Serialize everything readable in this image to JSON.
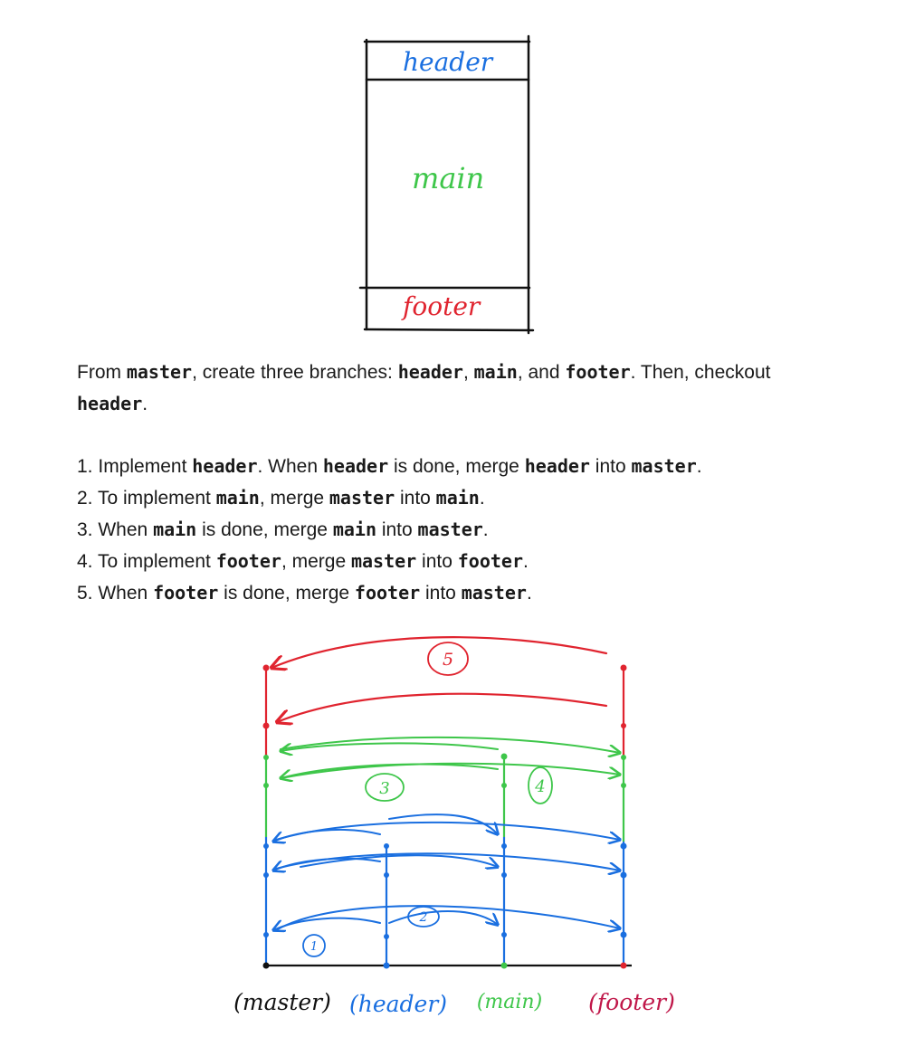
{
  "sketch": {
    "header_label": "header",
    "main_label": "main",
    "footer_label": "footer",
    "colors": {
      "header": "#1a6fe0",
      "main": "#3ec64a",
      "footer": "#e0242f",
      "ink": "#111111"
    }
  },
  "intro": {
    "t1": "From ",
    "c1": "master",
    "t2": ", create three branches: ",
    "c2": "header",
    "t3": ", ",
    "c3": "main",
    "t4": ", and ",
    "c4": "footer",
    "t5": ". Then, checkout ",
    "c5": "header",
    "t6": "."
  },
  "steps": [
    {
      "n": "1. ",
      "t1": "Implement ",
      "c1": "header",
      "t2": ". When ",
      "c2": "header",
      "t3": " is done, merge ",
      "c3": "header",
      "t4": " into ",
      "c4": "master",
      "t5": "."
    },
    {
      "n": "2. ",
      "t1": "To implement ",
      "c1": "main",
      "t2": ", merge ",
      "c2": "master",
      "t3": " into ",
      "c3": "main",
      "t4": ".",
      "c4": "",
      "t5": ""
    },
    {
      "n": "3. ",
      "t1": "When ",
      "c1": "main",
      "t2": " is done, merge ",
      "c2": "main",
      "t3": " into ",
      "c3": "master",
      "t4": ".",
      "c4": "",
      "t5": ""
    },
    {
      "n": "4. ",
      "t1": "To implement ",
      "c1": "footer",
      "t2": ", merge ",
      "c2": "master",
      "t3": " into ",
      "c3": "footer",
      "t4": ".",
      "c4": "",
      "t5": ""
    },
    {
      "n": "5. ",
      "t1": "When ",
      "c1": "footer",
      "t2": " is done, merge ",
      "c2": "footer",
      "t3": " into ",
      "c3": "master",
      "t4": ".",
      "c4": "",
      "t5": ""
    }
  ],
  "diagram": {
    "branch_labels": [
      "(master)",
      "(header)",
      "(main)",
      "(footer)"
    ],
    "label_colors": [
      "#111111",
      "#1a6fe0",
      "#3ec64a",
      "#c0184a"
    ],
    "step_markers": [
      "1",
      "2",
      "3",
      "4",
      "5"
    ],
    "colors": {
      "blue": "#1a6fe0",
      "green": "#3ec64a",
      "red": "#e0242f",
      "ink": "#111111"
    }
  }
}
